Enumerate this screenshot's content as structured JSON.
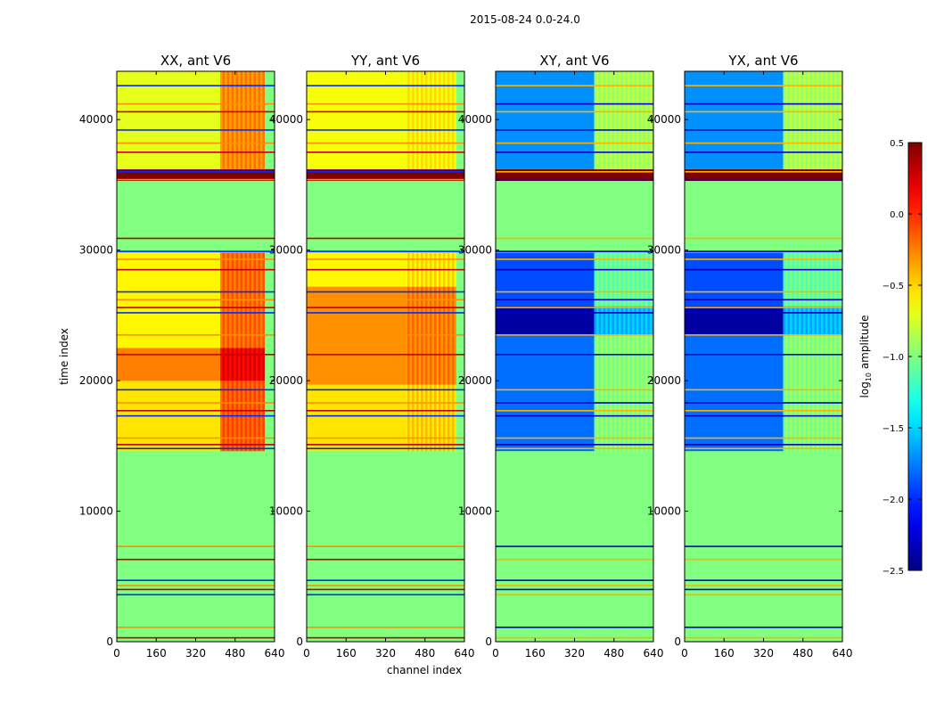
{
  "figure_title": "2015-08-24 0.0-24.0",
  "chart_data": {
    "type": "heatmap",
    "title": "2015-08-24 0.0-24.0",
    "xlabel": "channel index",
    "ylabel": "time index",
    "xlim": [
      0,
      640
    ],
    "ylim": [
      0,
      43700
    ],
    "x_ticks": [
      0,
      160,
      320,
      480,
      640
    ],
    "y_ticks": [
      0,
      10000,
      20000,
      30000,
      40000
    ],
    "colorbar": {
      "label_prefix": "log",
      "label_sub": "10",
      "label_suffix": " amplitude",
      "colormap": "jet",
      "min": -2.5,
      "max": 0.5,
      "ticks": [
        0.5,
        0.0,
        -0.5,
        -1.0,
        -1.5,
        -2.0,
        -2.5
      ],
      "tick_labels": [
        "0.5",
        "0.0",
        "−0.5",
        "−1.0",
        "−1.5",
        "−2.0",
        "−2.5"
      ]
    },
    "flagged_value": -1.0,
    "line_times": [
      300,
      1100,
      3600,
      4000,
      4300,
      4700,
      6300,
      7300,
      14800,
      15100,
      15600,
      17300,
      17700,
      18300,
      19300,
      22000,
      23500,
      25200,
      25600,
      26200,
      26800,
      28500,
      29300,
      29900,
      30900,
      35400,
      36000,
      37500,
      38200,
      39200,
      40600,
      41200,
      42600
    ],
    "panels": [
      {
        "title": "XX, ant V6",
        "polarization": "XX",
        "channel_profile": [
          {
            "channel_range": [
              0,
              420
            ],
            "level_day": -0.6,
            "level_night": -0.75
          },
          {
            "channel_range": [
              420,
              600
            ],
            "level_day": -0.05,
            "level_night": -0.3
          }
        ],
        "segments": [
          {
            "time_range": [
              0,
              14600
            ],
            "status": "mostly flagged",
            "level": -1.0
          },
          {
            "time_range": [
              14600,
              20000
            ],
            "level": -0.55
          },
          {
            "time_range": [
              20000,
              22500
            ],
            "level": -0.25
          },
          {
            "time_range": [
              22500,
              29800
            ],
            "level": -0.6
          },
          {
            "time_range": [
              29800,
              35300
            ],
            "status": "flagged",
            "level": -1.0
          },
          {
            "time_range": [
              35300,
              36200
            ],
            "level": 0.5
          },
          {
            "time_range": [
              36200,
              43700
            ],
            "level": -0.7
          }
        ]
      },
      {
        "title": "YY, ant V6",
        "polarization": "YY",
        "channel_profile": [
          {
            "channel_range": [
              0,
              400
            ],
            "level_day": -0.3,
            "level_night": -0.65
          },
          {
            "channel_range": [
              400,
              600
            ],
            "level_day": -0.15,
            "level_night": -0.4
          }
        ],
        "segments": [
          {
            "time_range": [
              0,
              14600
            ],
            "status": "mostly flagged",
            "level": -1.0
          },
          {
            "time_range": [
              14600,
              19700
            ],
            "level": -0.55
          },
          {
            "time_range": [
              19700,
              27200
            ],
            "level": -0.3
          },
          {
            "time_range": [
              27200,
              29800
            ],
            "level": -0.6
          },
          {
            "time_range": [
              29800,
              35300
            ],
            "status": "flagged",
            "level": -1.0
          },
          {
            "time_range": [
              35300,
              36200
            ],
            "level": 0.5
          },
          {
            "time_range": [
              36200,
              43700
            ],
            "level": -0.65
          }
        ]
      },
      {
        "title": "XY, ant V6",
        "polarization": "XY",
        "channel_profile": [
          {
            "channel_range": [
              0,
              400
            ],
            "level_day": -1.8,
            "level_night": -2.1
          },
          {
            "channel_range": [
              400,
              640
            ],
            "level_day": -0.8,
            "level_night": -1.5
          }
        ],
        "segments": [
          {
            "time_range": [
              0,
              14600
            ],
            "status": "mostly flagged",
            "level": -1.0
          },
          {
            "time_range": [
              14600,
              23500
            ],
            "level": -1.8
          },
          {
            "time_range": [
              23500,
              25700
            ],
            "level": -2.4
          },
          {
            "time_range": [
              25700,
              29800
            ],
            "level": -1.9
          },
          {
            "time_range": [
              29800,
              35300
            ],
            "status": "flagged",
            "level": -1.0
          },
          {
            "time_range": [
              35300,
              36200
            ],
            "level": 0.5
          },
          {
            "time_range": [
              36200,
              43700
            ],
            "level": -1.7
          }
        ]
      },
      {
        "title": "YX, ant V6",
        "polarization": "YX",
        "channel_profile": [
          {
            "channel_range": [
              0,
              400
            ],
            "level_day": -1.8,
            "level_night": -2.1
          },
          {
            "channel_range": [
              400,
              640
            ],
            "level_day": -0.8,
            "level_night": -1.5
          }
        ],
        "segments": [
          {
            "time_range": [
              0,
              14600
            ],
            "status": "mostly flagged",
            "level": -1.0
          },
          {
            "time_range": [
              14600,
              23500
            ],
            "level": -1.8
          },
          {
            "time_range": [
              23500,
              25700
            ],
            "level": -2.4
          },
          {
            "time_range": [
              25700,
              29800
            ],
            "level": -1.9
          },
          {
            "time_range": [
              29800,
              35300
            ],
            "status": "flagged",
            "level": -1.0
          },
          {
            "time_range": [
              35300,
              36200
            ],
            "level": 0.5
          },
          {
            "time_range": [
              36200,
              43700
            ],
            "level": -1.7
          }
        ]
      }
    ]
  }
}
